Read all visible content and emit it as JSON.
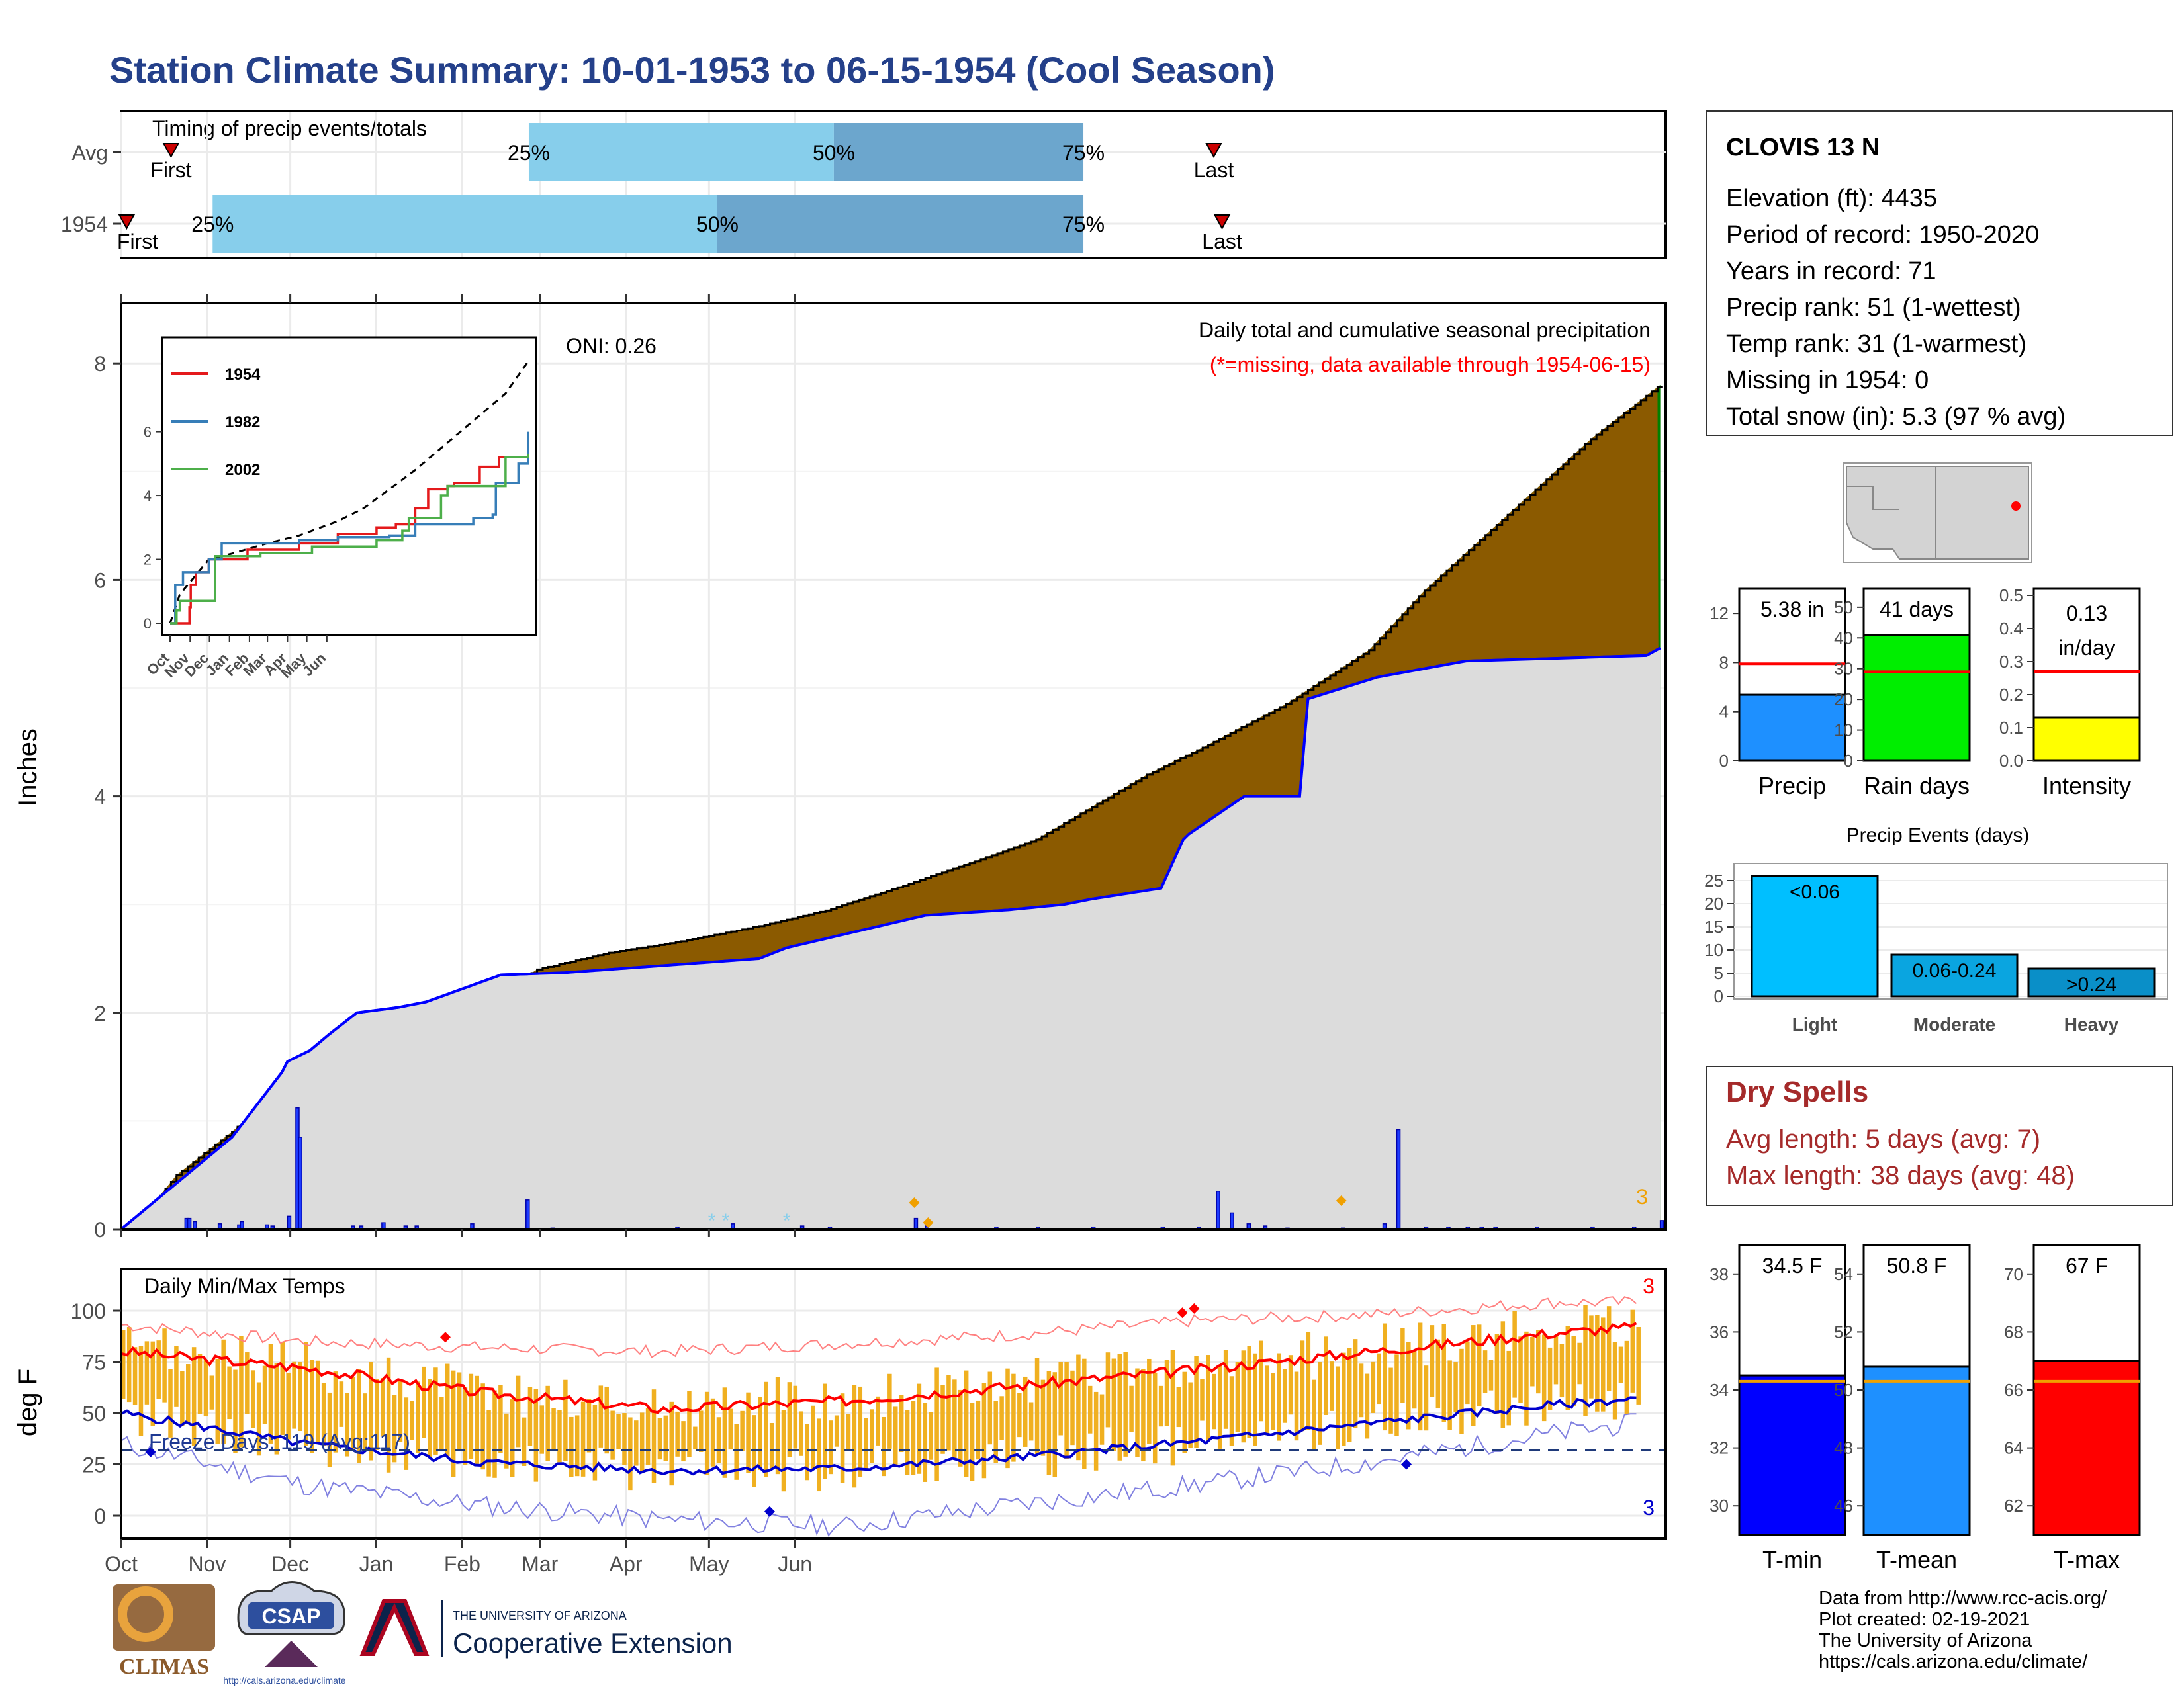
{
  "title": "Station Climate Summary: 10-01-1953 to 06-15-1954 (Cool Season)",
  "station": {
    "name": "CLOVIS 13 N",
    "lines": [
      "Elevation (ft): 4435",
      "Period of record: 1950-2020",
      "Years in record: 71",
      "Precip rank: 51 (1-wettest)",
      "Temp rank: 31 (1-warmest)",
      "Missing in 1954: 0",
      "Total snow (in): 5.3 (97 % avg)"
    ]
  },
  "timing": {
    "title": "Timing of precip events/totals",
    "rows": [
      {
        "label": "Avg",
        "first_label": "First",
        "last_label": "Last",
        "first_day": 18,
        "last_day": 394,
        "p25": 147,
        "p50": 257,
        "p75": 347,
        "p25_label": "25%",
        "p50_label": "50%",
        "p75_label": "75%"
      },
      {
        "label": "1954",
        "first_label": "First",
        "last_label": "Last",
        "first_day": 2,
        "last_day": 397,
        "p25": 33,
        "p50": 215,
        "p75": 347,
        "p25_label": "25%",
        "p50_label": "50%",
        "p75_label": "75%"
      }
    ],
    "colors": {
      "light": "#87ceeb",
      "dark": "#6ca6cd",
      "marker": "#cc0000"
    }
  },
  "precip_panel": {
    "ylabel": "Inches",
    "oni": "ONI: 0.26",
    "note1": "Daily total and cumulative seasonal precipitation",
    "note2": "(*=missing, data available through 1954-06-15)",
    "corner_count": "3",
    "xaxis_months": [
      "Oct",
      "Nov",
      "Dec",
      "Jan",
      "Feb",
      "Mar",
      "Apr",
      "May",
      "Jun"
    ],
    "yticks": [
      "0",
      "2",
      "4",
      "6",
      "8"
    ],
    "colors": {
      "dry": "#8b5a00",
      "wet": "#008000",
      "avg_fill": "#dcdcdc",
      "line": "#0000ff",
      "bars": "#1e3cff"
    }
  },
  "inset": {
    "legend": [
      "1954",
      "1982",
      "2002"
    ],
    "colors": [
      "#e41a1c",
      "#377eb8",
      "#4daf4a"
    ],
    "yticks": [
      "0",
      "2",
      "4",
      "6"
    ],
    "xticks": [
      "Oct",
      "Nov",
      "Dec",
      "Jan",
      "Feb",
      "Mar",
      "Apr",
      "May",
      "Jun"
    ]
  },
  "temp_panel": {
    "title": "Daily Min/Max Temps",
    "ylabel": "deg F",
    "freeze": "Freeze Days: 119 (Avg:117)",
    "top_count": "3",
    "bottom_count": "3",
    "yticks": [
      "0",
      "25",
      "50",
      "75",
      "100"
    ],
    "freeze_level": 32,
    "colors": {
      "bars": "#f0b020",
      "max": "#ff0000",
      "min": "#0000cd"
    }
  },
  "bars_precip": {
    "items": [
      {
        "label": "Precip",
        "value": 5.38,
        "text": "5.38 in",
        "avg": 7.9,
        "color": "#1e90ff",
        "ylim": [
          0,
          14
        ],
        "ticks": [
          "0",
          "4",
          "8",
          "12"
        ]
      },
      {
        "label": "Rain days",
        "value": 41,
        "text": "41 days",
        "avg": 29,
        "color": "#00ee00",
        "ylim": [
          0,
          56
        ],
        "ticks": [
          "0",
          "10",
          "20",
          "30",
          "40",
          "50"
        ]
      },
      {
        "label": "Intensity",
        "value": 0.13,
        "text": "0.13 in/day",
        "avg": 0.27,
        "color": "#ffff00",
        "ylim": [
          0,
          0.52
        ],
        "ticks": [
          "0.0",
          "0.1",
          "0.2",
          "0.3",
          "0.4",
          "0.5"
        ]
      }
    ]
  },
  "events": {
    "title": "Precip Events (days)",
    "categories": [
      "Light",
      "Moderate",
      "Heavy"
    ],
    "labels": [
      "<0.06",
      "0.06-0.24",
      ">0.24"
    ],
    "values": [
      26,
      9,
      6
    ],
    "colors": [
      "#00bfff",
      "#0aa5e0",
      "#0a8fc8"
    ],
    "ticks": [
      "0",
      "5",
      "10",
      "15",
      "20",
      "25"
    ]
  },
  "dry_spells": {
    "title": "Dry Spells",
    "line1": "Avg length: 5 days (avg: 7)",
    "line2": "Max length: 38 days (avg: 48)"
  },
  "bars_temp": {
    "items": [
      {
        "label": "T-min",
        "value": 34.5,
        "text": "34.5 F",
        "avg": 34.3,
        "color": "#0000ff",
        "ylim": [
          29,
          39
        ],
        "ticks": [
          "30",
          "32",
          "34",
          "36",
          "38"
        ]
      },
      {
        "label": "T-mean",
        "value": 50.8,
        "text": "50.8 F",
        "avg": 50.3,
        "color": "#1e90ff",
        "ylim": [
          45,
          55
        ],
        "ticks": [
          "46",
          "48",
          "50",
          "52",
          "54"
        ]
      },
      {
        "label": "T-max",
        "value": 67,
        "text": "67 F",
        "avg": 66.3,
        "color": "#ff0000",
        "ylim": [
          61,
          71
        ],
        "ticks": [
          "62",
          "64",
          "66",
          "68",
          "70"
        ]
      }
    ]
  },
  "credits": [
    "Data from http://www.rcc-acis.org/",
    "Plot created: 02-19-2021",
    "The University of Arizona",
    "https://cals.arizona.edu/climate/"
  ],
  "logos": {
    "climas": "CLIMAS",
    "csap": "CSAP",
    "csap_url": "http://cals.arizona.edu/climate",
    "ua_small": "THE UNIVERSITY OF ARIZONA",
    "ua_big": "Cooperative Extension"
  },
  "chart_data": [
    {
      "type": "area",
      "title": "Daily total and cumulative seasonal precipitation",
      "ylabel": "Inches",
      "ylim": [
        0,
        8.5
      ],
      "x": [
        "Oct",
        "Nov",
        "Dec",
        "Jan",
        "Feb",
        "Mar",
        "Apr",
        "May",
        "Jun"
      ],
      "series": [
        {
          "name": "1954",
          "cumulative_points": [
            [
              0,
              0
            ],
            [
              8,
              0.12
            ],
            [
              20,
              0.5
            ],
            [
              40,
              0.9
            ],
            [
              55,
              1.25
            ],
            [
              59,
              1.45
            ],
            [
              61,
              1.55
            ],
            [
              64,
              1.6
            ],
            [
              80,
              1.72
            ],
            [
              90,
              1.9
            ],
            [
              110,
              2.05
            ],
            [
              135,
              2.15
            ],
            [
              150,
              2.4
            ],
            [
              175,
              2.55
            ],
            [
              200,
              2.65
            ],
            [
              230,
              2.8
            ],
            [
              255,
              2.95
            ],
            [
              285,
              3.2
            ],
            [
              308,
              3.4
            ],
            [
              330,
              3.6
            ],
            [
              350,
              3.9
            ],
            [
              370,
              4.2
            ],
            [
              390,
              4.45
            ],
            [
              420,
              4.85
            ],
            [
              450,
              5.35
            ],
            [
              470,
              5.9
            ],
            [
              500,
              6.6
            ],
            [
              530,
              7.3
            ],
            [
              555,
              7.8
            ]
          ]
        },
        {
          "name": "Average",
          "cumulative_points": [
            [
              0,
              0
            ],
            [
              40,
              0.85
            ],
            [
              58,
              1.45
            ],
            [
              60,
              1.55
            ],
            [
              68,
              1.65
            ],
            [
              75,
              1.8
            ],
            [
              85,
              2.0
            ],
            [
              100,
              2.05
            ],
            [
              110,
              2.1
            ],
            [
              137,
              2.35
            ],
            [
              160,
              2.37
            ],
            [
              230,
              2.5
            ],
            [
              240,
              2.6
            ],
            [
              290,
              2.9
            ],
            [
              320,
              2.95
            ],
            [
              340,
              3.0
            ],
            [
              350,
              3.05
            ],
            [
              375,
              3.15
            ],
            [
              383,
              3.6
            ],
            [
              385,
              3.65
            ],
            [
              405,
              4.0
            ],
            [
              425,
              4.0
            ],
            [
              428,
              4.9
            ],
            [
              453,
              5.1
            ],
            [
              485,
              5.25
            ],
            [
              550,
              5.3
            ],
            [
              555,
              5.37
            ]
          ]
        }
      ],
      "daily_precip": [
        [
          23,
          0.1
        ],
        [
          24,
          0.1
        ],
        [
          26,
          0.07
        ],
        [
          35,
          0.05
        ],
        [
          42,
          0.04
        ],
        [
          43,
          0.07
        ],
        [
          52,
          0.04
        ],
        [
          54,
          0.03
        ],
        [
          60,
          0.12
        ],
        [
          63,
          1.12
        ],
        [
          64,
          0.85
        ],
        [
          83,
          0.03
        ],
        [
          86,
          0.03
        ],
        [
          94,
          0.06
        ],
        [
          102,
          0.03
        ],
        [
          106,
          0.03
        ],
        [
          126,
          0.05
        ],
        [
          146,
          0.27
        ],
        [
          155,
          0.01
        ],
        [
          200,
          0.02
        ],
        [
          220,
          0.05
        ],
        [
          245,
          0.03
        ],
        [
          255,
          0.02
        ],
        [
          286,
          0.1
        ],
        [
          290,
          0.03
        ],
        [
          315,
          0.02
        ],
        [
          330,
          0.02
        ],
        [
          350,
          0.02
        ],
        [
          375,
          0.02
        ],
        [
          388,
          0.02
        ],
        [
          395,
          0.35
        ],
        [
          400,
          0.15
        ],
        [
          406,
          0.05
        ],
        [
          412,
          0.03
        ],
        [
          420,
          0.01
        ],
        [
          440,
          0.01
        ],
        [
          455,
          0.05
        ],
        [
          460,
          0.92
        ],
        [
          470,
          0.02
        ],
        [
          478,
          0.02
        ],
        [
          485,
          0.02
        ],
        [
          490,
          0.02
        ],
        [
          495,
          0.02
        ],
        [
          510,
          0.02
        ],
        [
          530,
          0.02
        ],
        [
          545,
          0.02
        ],
        [
          555,
          0.08
        ]
      ]
    },
    {
      "type": "bar",
      "title": "Daily Min/Max Temps",
      "ylabel": "deg F",
      "ylim": [
        -20,
        110
      ],
      "x": [
        "Oct",
        "Nov",
        "Dec",
        "Jan",
        "Feb",
        "Mar",
        "Apr",
        "May",
        "Jun"
      ],
      "series": [
        {
          "name": "Avg max",
          "points": [
            [
              0,
              80
            ],
            [
              31,
              72
            ],
            [
              61,
              60
            ],
            [
              92,
              52
            ],
            [
              123,
              56
            ],
            [
              151,
              63
            ],
            [
              182,
              71
            ],
            [
              212,
              80
            ],
            [
              243,
              89
            ],
            [
              257,
              92
            ]
          ]
        },
        {
          "name": "Avg min",
          "points": [
            [
              0,
              50
            ],
            [
              31,
              35
            ],
            [
              61,
              26
            ],
            [
              92,
              22
            ],
            [
              123,
              23
            ],
            [
              151,
              28
            ],
            [
              182,
              36
            ],
            [
              212,
              45
            ],
            [
              243,
              54
            ],
            [
              257,
              57
            ]
          ]
        },
        {
          "name": "Record max",
          "points": [
            [
              0,
              93
            ],
            [
              31,
              85
            ],
            [
              61,
              82
            ],
            [
              92,
              80
            ],
            [
              123,
              84
            ],
            [
              151,
              88
            ],
            [
              182,
              95
            ],
            [
              212,
              98
            ],
            [
              243,
              104
            ],
            [
              257,
              104
            ]
          ]
        },
        {
          "name": "Record min",
          "points": [
            [
              0,
              35
            ],
            [
              31,
              15
            ],
            [
              61,
              5
            ],
            [
              92,
              -2
            ],
            [
              123,
              -5
            ],
            [
              151,
              5
            ],
            [
              182,
              15
            ],
            [
              212,
              26
            ],
            [
              243,
              40
            ],
            [
              257,
              45
            ]
          ]
        }
      ]
    },
    {
      "type": "bar",
      "categories": [
        "Precip",
        "Rain days",
        "Intensity"
      ],
      "values": [
        5.38,
        41,
        0.13
      ]
    },
    {
      "type": "bar",
      "title": "Precip Events (days)",
      "categories": [
        "Light",
        "Moderate",
        "Heavy"
      ],
      "values": [
        26,
        9,
        6
      ]
    },
    {
      "type": "bar",
      "categories": [
        "T-min",
        "T-mean",
        "T-max"
      ],
      "values": [
        34.5,
        50.8,
        67
      ]
    }
  ]
}
